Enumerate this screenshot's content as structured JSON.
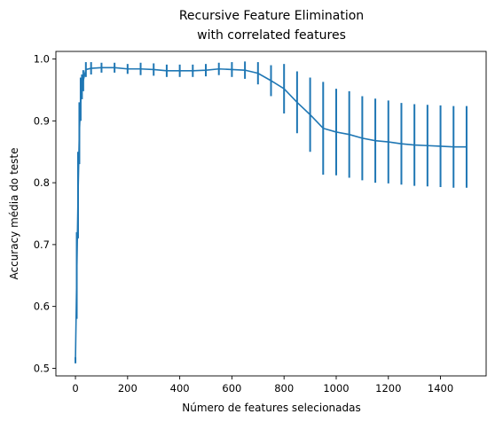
{
  "chart_data": {
    "type": "line",
    "title_lines": [
      "Recursive Feature Elimination",
      "with correlated features"
    ],
    "xlabel": "Número de features selecionadas",
    "ylabel": "Accuracy média do teste",
    "xlim": [
      -75,
      1575
    ],
    "ylim": [
      0.4877,
      1.0123
    ],
    "xticks": [
      0,
      200,
      400,
      600,
      800,
      1000,
      1200,
      1400
    ],
    "xtick_labels": [
      "0",
      "200",
      "400",
      "600",
      "800",
      "1000",
      "1200",
      "1400"
    ],
    "yticks": [
      0.5,
      0.6,
      0.7,
      0.8,
      0.9,
      1.0
    ],
    "ytick_labels": [
      "0.5",
      "0.6",
      "0.7",
      "0.8",
      "0.9",
      "1.0"
    ],
    "grid": false,
    "color": "#1f77b4",
    "series": [
      {
        "error_bars": true,
        "x": [
          0,
          5,
          10,
          15,
          20,
          25,
          30,
          40,
          60,
          100,
          150,
          200,
          250,
          300,
          350,
          400,
          450,
          500,
          550,
          600,
          650,
          700,
          750,
          800,
          850,
          900,
          950,
          1000,
          1050,
          1100,
          1150,
          1200,
          1250,
          1300,
          1350,
          1400,
          1450,
          1500
        ],
        "y": [
          0.513,
          0.65,
          0.78,
          0.88,
          0.935,
          0.955,
          0.965,
          0.983,
          0.985,
          0.986,
          0.986,
          0.984,
          0.984,
          0.983,
          0.981,
          0.981,
          0.981,
          0.982,
          0.984,
          0.983,
          0.982,
          0.977,
          0.965,
          0.952,
          0.93,
          0.91,
          0.888,
          0.882,
          0.878,
          0.872,
          0.868,
          0.866,
          0.863,
          0.861,
          0.86,
          0.859,
          0.858,
          0.858
        ],
        "err": [
          0.005,
          0.07,
          0.07,
          0.05,
          0.035,
          0.02,
          0.017,
          0.012,
          0.01,
          0.008,
          0.008,
          0.008,
          0.01,
          0.01,
          0.01,
          0.01,
          0.01,
          0.01,
          0.01,
          0.012,
          0.014,
          0.018,
          0.025,
          0.04,
          0.05,
          0.06,
          0.075,
          0.07,
          0.07,
          0.068,
          0.068,
          0.067,
          0.066,
          0.066,
          0.066,
          0.066,
          0.066,
          0.066
        ]
      }
    ]
  }
}
